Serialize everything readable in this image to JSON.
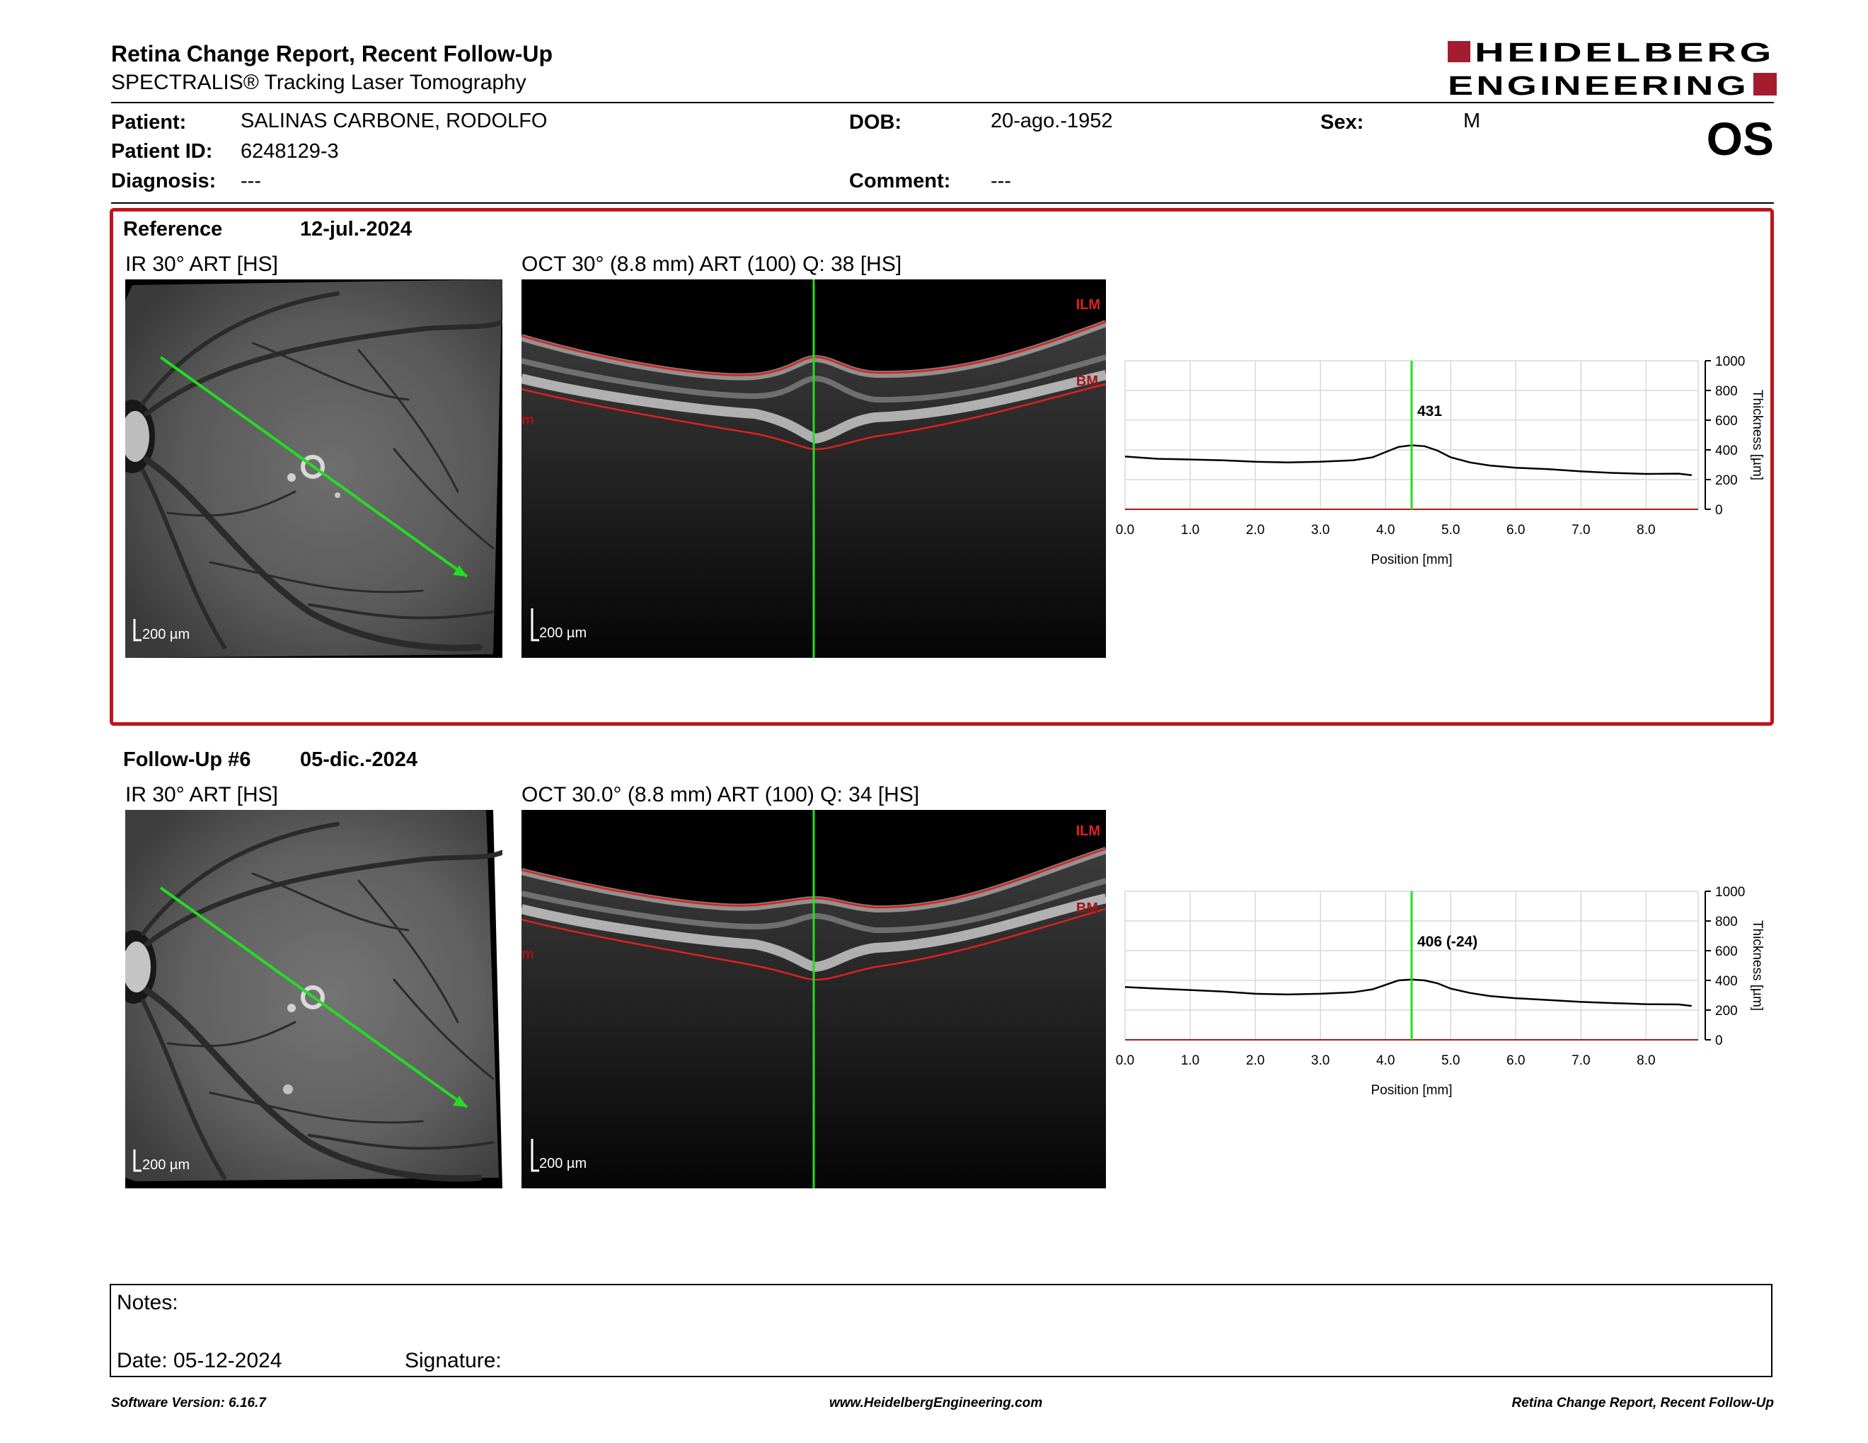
{
  "header": {
    "title": "Retina Change Report, Recent Follow-Up",
    "subtitle": "SPECTRALIS® Tracking Laser Tomography",
    "logo_line1": "HEIDELBERG",
    "logo_line2": "ENGINEERING",
    "eye": "OS"
  },
  "patient": {
    "patient_label": "Patient:",
    "patient_value": "SALINAS CARBONE, RODOLFO",
    "id_label": "Patient ID:",
    "id_value": "6248129-3",
    "diagnosis_label": "Diagnosis:",
    "diagnosis_value": "---",
    "dob_label": "DOB:",
    "dob_value": "20-ago.-1952",
    "comment_label": "Comment:",
    "comment_value": "---",
    "sex_label": "Sex:",
    "sex_value": "M"
  },
  "colors": {
    "accent_red": "#c0141d",
    "scan_line_green": "#22dd22",
    "segmentation_red": "#e02020"
  },
  "reference": {
    "label": "Reference",
    "date": "12-jul.-2024",
    "ir_title": "IR 30° ART [HS]",
    "oct_title": "OCT 30° (8.8 mm) ART (100) Q: 38 [HS]",
    "scale_ir": "200 µm",
    "scale_oct": "200 µm",
    "ilm_label": "ILM",
    "bm_label": "BM",
    "edge_label": "m"
  },
  "followup": {
    "label": "Follow-Up #6",
    "date": "05-dic.-2024",
    "ir_title": "IR 30° ART [HS]",
    "oct_title": "OCT 30.0° (8.8 mm) ART (100) Q: 34 [HS]",
    "scale_ir": "200 µm",
    "scale_oct": "200 µm",
    "ilm_label": "ILM",
    "bm_label": "BM",
    "edge_label": "m"
  },
  "chart_data": [
    {
      "type": "line",
      "xlabel": "Position [mm]",
      "ylabel": "Thickness [µm]",
      "xlim": [
        0,
        8.8
      ],
      "ylim": [
        0,
        1000
      ],
      "x_ticks": [
        "0.0",
        "1.0",
        "2.0",
        "3.0",
        "4.0",
        "5.0",
        "6.0",
        "7.0",
        "8.0"
      ],
      "y_ticks": [
        "1000",
        "800",
        "600",
        "400",
        "200",
        "0"
      ],
      "grid": true,
      "cursor_x": 4.4,
      "cursor_label": "431",
      "series": [
        {
          "x": [
            0,
            0.5,
            1,
            1.5,
            2,
            2.5,
            3,
            3.5,
            3.8,
            4.0,
            4.2,
            4.4,
            4.6,
            4.8,
            5.0,
            5.3,
            5.6,
            6,
            6.5,
            7,
            7.5,
            8,
            8.5,
            8.7
          ],
          "values": [
            355,
            340,
            335,
            330,
            320,
            315,
            320,
            330,
            350,
            385,
            420,
            431,
            425,
            395,
            350,
            315,
            295,
            280,
            270,
            255,
            245,
            238,
            240,
            230
          ]
        }
      ]
    },
    {
      "type": "line",
      "xlabel": "Position [mm]",
      "ylabel": "Thickness [µm]",
      "xlim": [
        0,
        8.8
      ],
      "ylim": [
        0,
        1000
      ],
      "x_ticks": [
        "0.0",
        "1.0",
        "2.0",
        "3.0",
        "4.0",
        "5.0",
        "6.0",
        "7.0",
        "8.0"
      ],
      "y_ticks": [
        "1000",
        "800",
        "600",
        "400",
        "200",
        "0"
      ],
      "grid": true,
      "cursor_x": 4.4,
      "cursor_label": "406 (-24)",
      "series": [
        {
          "x": [
            0,
            0.5,
            1,
            1.5,
            2,
            2.5,
            3,
            3.5,
            3.8,
            4.0,
            4.2,
            4.4,
            4.6,
            4.8,
            5.0,
            5.3,
            5.6,
            6,
            6.5,
            7,
            7.5,
            8,
            8.5,
            8.7
          ],
          "values": [
            355,
            345,
            335,
            325,
            310,
            305,
            310,
            320,
            340,
            370,
            400,
            406,
            400,
            380,
            345,
            315,
            295,
            280,
            268,
            255,
            247,
            240,
            238,
            228
          ]
        }
      ]
    }
  ],
  "notes": {
    "notes_label": "Notes:",
    "date_label": "Date: 05-12-2024",
    "signature_label": "Signature:"
  },
  "footer": {
    "software": "Software Version: 6.16.7",
    "website": "www.HeidelbergEngineering.com",
    "report": "Retina Change Report, Recent Follow-Up"
  }
}
